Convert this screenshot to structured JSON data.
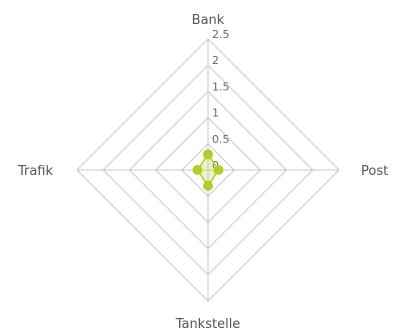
{
  "chart_data": {
    "type": "radar",
    "categories": [
      "Bank",
      "Post",
      "Tankstelle",
      "Trafik"
    ],
    "series": [
      {
        "values": [
          0.3,
          0.2,
          0.3,
          0.2
        ],
        "color": "#b5cc2e"
      }
    ],
    "ticks": [
      "0",
      "0.5",
      "1",
      "1.5",
      "2",
      "2.5"
    ],
    "rlim": [
      0,
      2.5
    ],
    "grid": true
  }
}
